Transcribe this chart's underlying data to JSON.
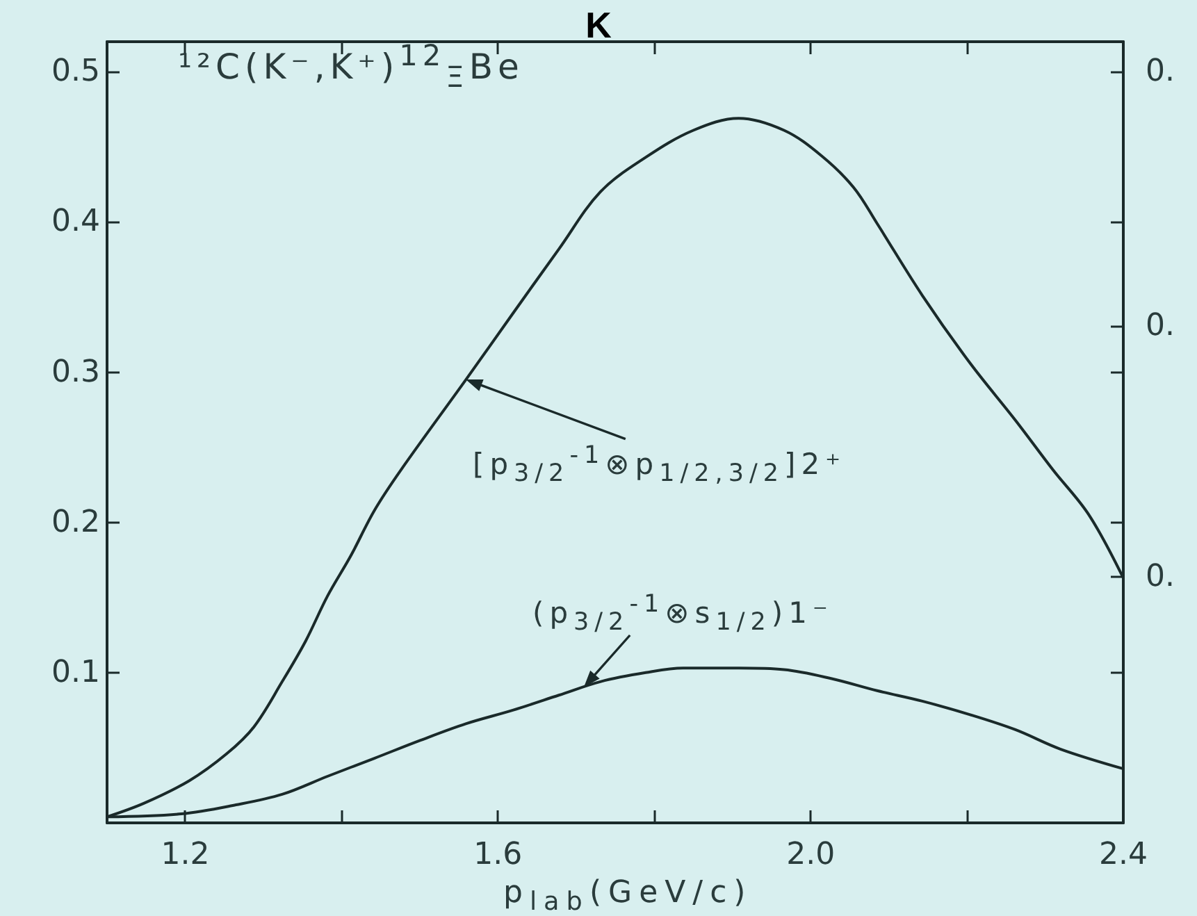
{
  "chart_data": {
    "type": "line",
    "title": "K",
    "xlabel": "p$_{lab}$(GeV/c)",
    "annotations": [
      "¹²C(K⁻,K⁺)$^{12}$$_{Ξ}$Be"
    ],
    "series": [
      {
        "name": "[p$_{3/2}$$^{-1}$⊗p$_{1/2,3/2}$]2⁺",
        "color": "#1a2a2a",
        "x": [
          1.1,
          1.147,
          1.205,
          1.253,
          1.288,
          1.324,
          1.354,
          1.382,
          1.412,
          1.442,
          1.476,
          1.559,
          1.619,
          1.678,
          1.731,
          1.789,
          1.85,
          1.908,
          1.966,
          2.014,
          2.055,
          2.085,
          2.143,
          2.204,
          2.262,
          2.31,
          2.356,
          2.4
        ],
        "values": [
          0.004,
          0.013,
          0.028,
          0.046,
          0.064,
          0.094,
          0.121,
          0.151,
          0.178,
          0.208,
          0.235,
          0.295,
          0.339,
          0.382,
          0.42,
          0.443,
          0.461,
          0.469,
          0.461,
          0.444,
          0.423,
          0.399,
          0.351,
          0.306,
          0.268,
          0.235,
          0.205,
          0.163
        ]
      },
      {
        "name": "(p$_{3/2}$$^{-1}$⊗s$_{1/2}$)1⁻",
        "color": "#1a2a2a",
        "x": [
          1.1,
          1.195,
          1.265,
          1.324,
          1.382,
          1.442,
          1.501,
          1.559,
          1.619,
          1.678,
          1.731,
          1.789,
          1.837,
          1.908,
          1.966,
          2.027,
          2.085,
          2.143,
          2.204,
          2.262,
          2.32,
          2.4
        ],
        "values": [
          0.004,
          0.006,
          0.012,
          0.019,
          0.031,
          0.043,
          0.055,
          0.066,
          0.075,
          0.085,
          0.094,
          0.1,
          0.103,
          0.103,
          0.102,
          0.096,
          0.088,
          0.081,
          0.072,
          0.062,
          0.049,
          0.036
        ]
      }
    ],
    "xlim": [
      1.1,
      2.4
    ],
    "xticks": [
      1.2,
      {
        "value": 1.4,
        "label": null
      },
      1.6,
      {
        "value": 1.8,
        "label": null
      },
      {
        "value": 2,
        "label": "2.0"
      },
      {
        "value": 2.2,
        "label": null
      },
      2.4
    ],
    "ylim": [
      0,
      0.52
    ],
    "yticks": [
      0.1,
      0.2,
      0.3,
      0.4,
      0.5
    ],
    "y2lim": [
      0,
      0.52
    ],
    "y2ticks": [
      {
        "value": 0.1,
        "label": null
      },
      {
        "value": 0.164,
        "label": "0."
      },
      {
        "value": 0.2,
        "label": null
      },
      {
        "value": 0.3,
        "label": null
      },
      {
        "value": 0.331,
        "label": "0."
      },
      {
        "value": 0.4,
        "label": null
      },
      {
        "value": 0.5,
        "label": "0."
      }
    ],
    "grid": false,
    "legend": false,
    "marker": "none",
    "line_style": "solid"
  }
}
